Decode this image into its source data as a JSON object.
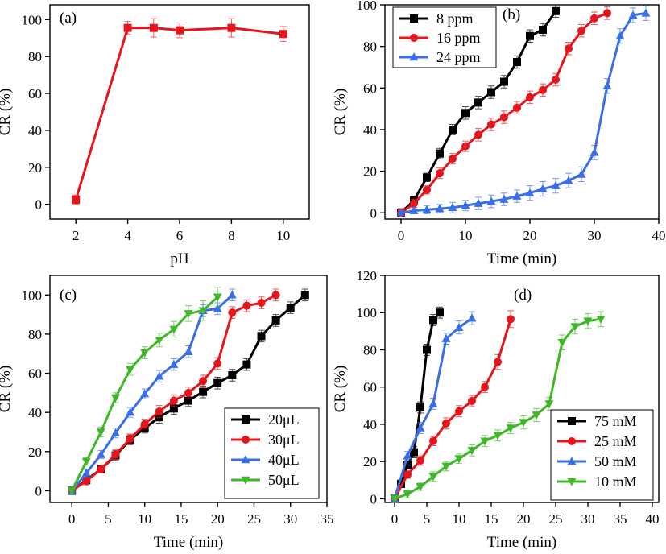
{
  "chart_data": [
    {
      "id": "a",
      "type": "line",
      "panel_label": "(a)",
      "xlabel": "pH",
      "ylabel": "CR (%)",
      "xlim": [
        1,
        11
      ],
      "ylim": [
        -8,
        108
      ],
      "xticks": [
        2,
        4,
        6,
        8,
        10
      ],
      "yticks": [
        0,
        20,
        40,
        60,
        80,
        100
      ],
      "grid": false,
      "legend": null,
      "series": [
        {
          "name": "CR",
          "color": "#e8141c",
          "marker": "square",
          "x": [
            2,
            4,
            5,
            6,
            8,
            10
          ],
          "y": [
            2.5,
            95.5,
            95.5,
            94.2,
            95.5,
            92.2
          ],
          "err": [
            2.5,
            3.5,
            5.0,
            4.0,
            5.0,
            4.0
          ]
        }
      ]
    },
    {
      "id": "b",
      "type": "line",
      "panel_label": "(b)",
      "xlabel": "Time (min)",
      "ylabel": "CR (%)",
      "xlim": [
        -2.5,
        40
      ],
      "ylim": [
        -3,
        100
      ],
      "xticks": [
        0,
        10,
        20,
        30,
        40
      ],
      "yticks": [
        0,
        20,
        40,
        60,
        80,
        100
      ],
      "grid": false,
      "legend": "top-left",
      "series": [
        {
          "name": "8 ppm",
          "color": "#000000",
          "marker": "square",
          "x": [
            0,
            2,
            4,
            6,
            8,
            10,
            12,
            14,
            16,
            18,
            20,
            22,
            24
          ],
          "y": [
            0,
            6,
            17,
            28.5,
            40,
            48,
            53,
            58,
            63,
            72.5,
            85,
            88,
            97
          ],
          "err": [
            2,
            2,
            2,
            2.5,
            2.5,
            3,
            3,
            3,
            3,
            3,
            3,
            3,
            3
          ]
        },
        {
          "name": "16 ppm",
          "color": "#e8141c",
          "marker": "circle",
          "x": [
            0,
            2,
            4,
            6,
            8,
            10,
            12,
            14,
            16,
            18,
            20,
            22,
            24,
            26,
            28,
            30,
            32
          ],
          "y": [
            0,
            4.5,
            11,
            19,
            26,
            32,
            37.5,
            42.5,
            46,
            50.5,
            55.5,
            59,
            64,
            79,
            87.5,
            93.5,
            96
          ],
          "err": [
            2,
            2,
            2,
            2.5,
            2.5,
            2.5,
            3,
            3,
            3,
            3,
            3,
            3,
            3,
            3,
            3,
            3,
            3
          ]
        },
        {
          "name": "24 ppm",
          "color": "#3a6ee6",
          "marker": "triangle-up",
          "x": [
            0,
            2,
            4,
            6,
            8,
            10,
            12,
            14,
            16,
            18,
            20,
            22,
            24,
            26,
            28,
            30,
            32,
            34,
            36,
            38
          ],
          "y": [
            0,
            1,
            1.5,
            2,
            2.5,
            3.5,
            4.5,
            5.5,
            6.5,
            8,
            9.5,
            11.5,
            13,
            15.5,
            18.5,
            29,
            61,
            85,
            95,
            96
          ],
          "err": [
            1.5,
            1.5,
            2,
            2,
            2.5,
            2.5,
            3,
            3,
            3,
            3,
            3.5,
            3.5,
            3.5,
            3.5,
            3.5,
            3.5,
            3.5,
            3.5,
            3.5,
            3.5
          ]
        }
      ]
    },
    {
      "id": "c",
      "type": "line",
      "panel_label": "(c)",
      "xlabel": "Time (min)",
      "ylabel": "CR (%)",
      "xlim": [
        -3,
        35
      ],
      "ylim": [
        -6,
        110
      ],
      "xticks": [
        0,
        5,
        10,
        15,
        20,
        25,
        30,
        35
      ],
      "yticks": [
        0,
        20,
        40,
        60,
        80,
        100
      ],
      "grid": false,
      "legend": "bottom-right",
      "series": [
        {
          "name": "20μL",
          "color": "#000000",
          "marker": "square",
          "x": [
            0,
            2,
            4,
            6,
            8,
            10,
            12,
            14,
            16,
            18,
            20,
            22,
            24,
            26,
            28,
            30,
            32
          ],
          "y": [
            0,
            5.5,
            11,
            18,
            26,
            32,
            37.5,
            42,
            46,
            50.5,
            55,
            59,
            64.5,
            79,
            87,
            93.5,
            100
          ],
          "err": [
            2,
            2,
            2,
            2.5,
            2.5,
            2.5,
            3,
            3,
            3,
            3,
            3,
            3,
            3,
            3,
            3,
            3,
            3
          ]
        },
        {
          "name": "30μL",
          "color": "#e8141c",
          "marker": "circle",
          "x": [
            0,
            2,
            4,
            6,
            8,
            10,
            12,
            14,
            16,
            18,
            20,
            22,
            24,
            26,
            28
          ],
          "y": [
            0,
            5,
            11,
            18.5,
            26.5,
            34,
            40.5,
            46,
            50,
            56,
            65,
            91,
            94.5,
            96,
            100
          ],
          "err": [
            2,
            2,
            2,
            2.5,
            2.5,
            2.5,
            3,
            3,
            3,
            3,
            3,
            3,
            3,
            3,
            3
          ]
        },
        {
          "name": "40μL",
          "color": "#3a6ee6",
          "marker": "triangle-up",
          "x": [
            0,
            2,
            4,
            6,
            8,
            10,
            12,
            14,
            16,
            18,
            20,
            22
          ],
          "y": [
            0,
            9,
            18.5,
            29.5,
            40,
            49.5,
            58.5,
            64.5,
            71,
            92,
            93,
            100
          ],
          "err": [
            2,
            2,
            2,
            2.5,
            2.5,
            2.5,
            3,
            3,
            3,
            3,
            3,
            3
          ]
        },
        {
          "name": "50μL",
          "color": "#3fb728",
          "marker": "triangle-down",
          "x": [
            0,
            2,
            4,
            6,
            8,
            10,
            12,
            14,
            16,
            18,
            20
          ],
          "y": [
            0,
            15,
            30,
            47.5,
            62,
            70.5,
            77,
            82.5,
            90.5,
            92,
            99
          ],
          "err": [
            2,
            2,
            2.5,
            2.5,
            3,
            3,
            3.5,
            4,
            4,
            5,
            5
          ]
        }
      ]
    },
    {
      "id": "d",
      "type": "line",
      "panel_label": "(d)",
      "xlabel": "Time (min)",
      "ylabel": "CR (%)",
      "xlim": [
        -1.5,
        41
      ],
      "ylim": [
        -2,
        120
      ],
      "xticks": [
        0,
        5,
        10,
        15,
        20,
        25,
        30,
        35,
        40
      ],
      "yticks": [
        0,
        20,
        40,
        60,
        80,
        100,
        120
      ],
      "grid": false,
      "legend": "bottom-right",
      "series": [
        {
          "name": "75 mM",
          "color": "#000000",
          "marker": "square",
          "x": [
            0,
            1,
            2,
            3,
            4,
            5,
            6,
            7
          ],
          "y": [
            0,
            8,
            18,
            25,
            49,
            80,
            96,
            100
          ],
          "err": [
            2,
            2,
            2,
            3,
            3,
            3,
            3,
            3
          ]
        },
        {
          "name": "25 mM",
          "color": "#e8141c",
          "marker": "circle",
          "x": [
            0,
            2,
            4,
            6,
            8,
            10,
            12,
            14,
            16,
            18
          ],
          "y": [
            0,
            13,
            20.5,
            31,
            40.5,
            47,
            52.5,
            60,
            73.5,
            96.5
          ],
          "err": [
            2,
            2,
            2.5,
            2.5,
            3,
            3,
            3,
            3,
            4,
            4.5
          ]
        },
        {
          "name": "50 mM",
          "color": "#3a6ee6",
          "marker": "triangle-up",
          "x": [
            0,
            2,
            4,
            6,
            8,
            10,
            12
          ],
          "y": [
            0,
            23,
            38,
            51,
            86,
            92,
            97
          ],
          "err": [
            2,
            2.5,
            3,
            3,
            3,
            3.5,
            3.5
          ]
        },
        {
          "name": "10 mM",
          "color": "#3fb728",
          "marker": "triangle-down",
          "x": [
            0,
            2,
            4,
            6,
            8,
            10,
            12,
            14,
            16,
            18,
            20,
            22,
            24,
            26,
            28,
            30,
            32
          ],
          "y": [
            0,
            2.5,
            6.5,
            12,
            17.5,
            21.5,
            26,
            31,
            34,
            38,
            41,
            45,
            51,
            84,
            92.5,
            95.5,
            96.5
          ],
          "err": [
            2,
            2,
            2,
            2.5,
            2.5,
            2.5,
            3,
            3,
            3,
            3,
            3.5,
            3.5,
            3.5,
            4,
            4,
            4,
            4
          ]
        }
      ]
    }
  ]
}
